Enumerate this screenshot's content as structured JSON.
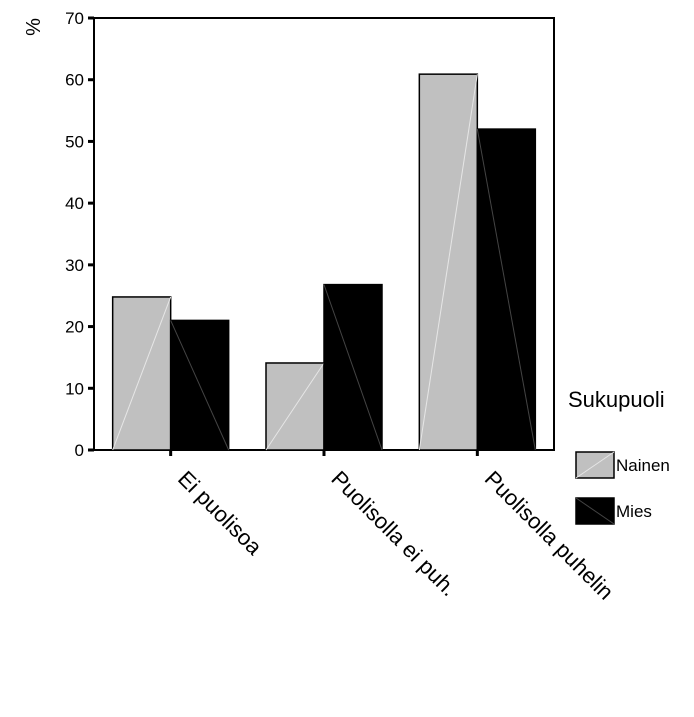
{
  "chart_data": {
    "type": "bar",
    "ylabel": "%",
    "xlabel": "",
    "ylim": [
      0,
      70
    ],
    "yticks": [
      0,
      10,
      20,
      30,
      40,
      50,
      60,
      70
    ],
    "categories": [
      "Ei puolisoa",
      "Puolisolla ei puh.",
      "Puolisolla puhelin"
    ],
    "series": [
      {
        "name": "Nainen",
        "values": [
          24.8,
          14.1,
          60.9
        ],
        "color": "#c0c0c0"
      },
      {
        "name": "Mies",
        "values": [
          21.0,
          26.8,
          52.0
        ],
        "color": "#000000"
      }
    ],
    "legend": {
      "title": "Sukupuoli",
      "placement": "right"
    },
    "grid": false
  }
}
